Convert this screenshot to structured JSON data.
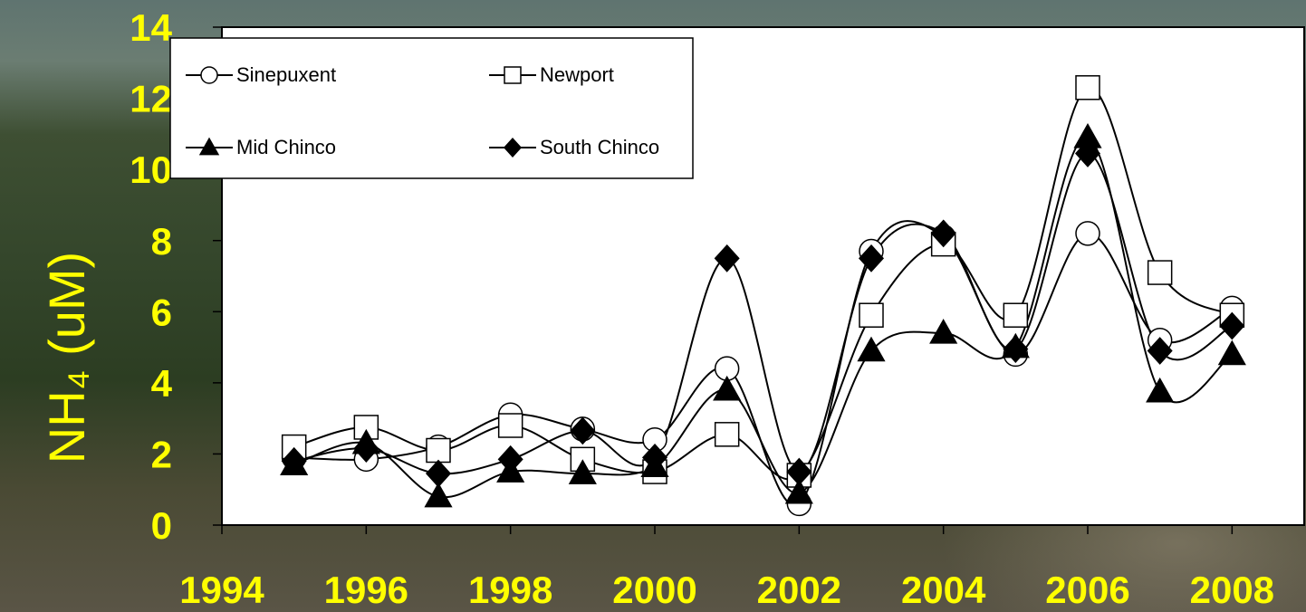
{
  "chart_data": {
    "type": "line",
    "y_label": "NH₄ (uM)",
    "x": [
      1995,
      1996,
      1997,
      1998,
      1999,
      2000,
      2001,
      2002,
      2003,
      2004,
      2005,
      2006,
      2007,
      2008
    ],
    "series": [
      {
        "name": "Sinepuxent",
        "color": "#000000",
        "marker": "circle",
        "marker_fill": "#ffffff",
        "values": [
          1.9,
          1.85,
          2.2,
          3.1,
          2.7,
          2.4,
          4.4,
          0.6,
          7.7,
          8.1,
          4.8,
          8.2,
          5.2,
          6.1
        ]
      },
      {
        "name": "Newport",
        "color": "#000000",
        "marker": "square",
        "marker_fill": "#ffffff",
        "values": [
          2.2,
          2.75,
          2.1,
          2.8,
          1.85,
          1.5,
          2.55,
          1.4,
          5.9,
          7.9,
          5.9,
          12.3,
          7.1,
          5.9
        ]
      },
      {
        "name": "Mid Chinco",
        "color": "#000000",
        "marker": "triangle",
        "marker_fill": "#000000",
        "values": [
          1.7,
          2.3,
          0.8,
          1.5,
          1.45,
          1.65,
          3.8,
          0.9,
          4.9,
          5.4,
          5.0,
          10.9,
          3.75,
          4.8
        ]
      },
      {
        "name": "South Chinco",
        "color": "#000000",
        "marker": "diamond",
        "marker_fill": "#000000",
        "values": [
          1.8,
          2.15,
          1.45,
          1.85,
          2.65,
          1.9,
          7.5,
          1.5,
          7.5,
          8.2,
          4.95,
          10.45,
          4.9,
          5.6
        ]
      }
    ],
    "xlim": [
      1994,
      2009
    ],
    "xticks": [
      1994,
      1996,
      1998,
      2000,
      2002,
      2004,
      2006,
      2008
    ],
    "ylim": [
      0,
      14
    ],
    "yticks": [
      0,
      2,
      4,
      6,
      8,
      10,
      12,
      14
    ],
    "smooth": true,
    "grid": false,
    "legend": "upper left",
    "tick_color": "#ffff00"
  }
}
